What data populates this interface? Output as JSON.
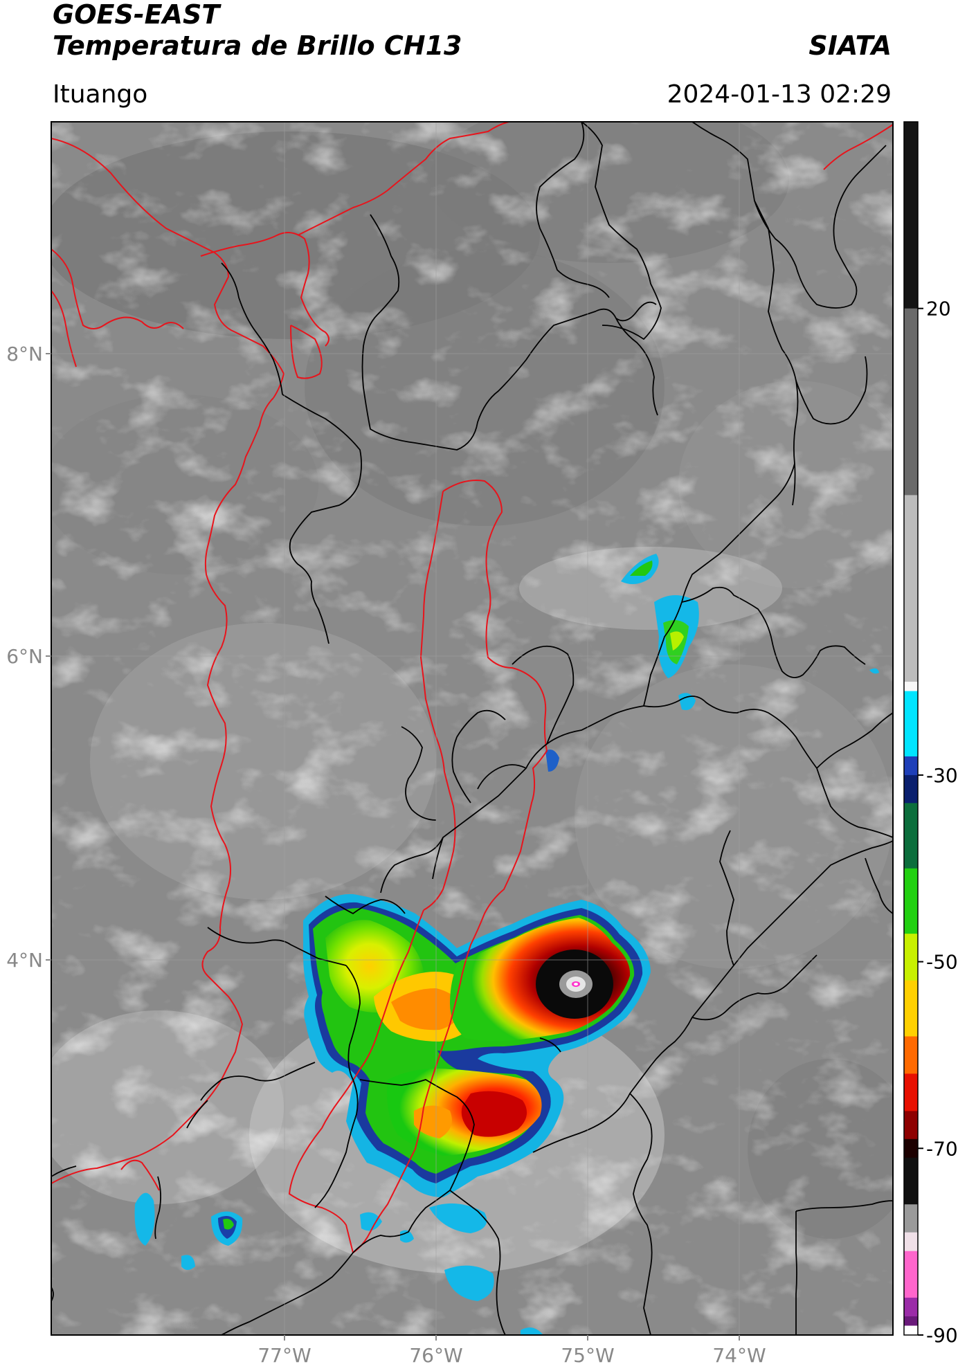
{
  "header": {
    "satellite": "GOES-EAST",
    "product": "Temperatura de Brillo CH13",
    "organization": "SIATA",
    "location": "Ituango",
    "timestamp": "2024-01-13 02:29"
  },
  "map": {
    "lat_labels": [
      "8°N",
      "6°N",
      "4°N"
    ],
    "lon_labels": [
      "77°W",
      "76°W",
      "75°W",
      "74°W"
    ],
    "extent": {
      "lon_min": -78.55,
      "lon_max": -73.0,
      "lat_min": 2.4,
      "lat_max": 10.45
    },
    "colors": {
      "department_borders": "#000000",
      "coastline_basin": "#e8141c",
      "gridlines": "#a0a0a0"
    }
  },
  "colorbar": {
    "ticks": [
      "20",
      "-30",
      "-50",
      "-70",
      "-90"
    ],
    "tick_values": [
      20,
      -30,
      -50,
      -70,
      -90
    ],
    "min": -90,
    "max": 40,
    "stops": [
      {
        "v": 40,
        "c": "#141414"
      },
      {
        "v": 20,
        "c": "#6a6a6a"
      },
      {
        "v": 0,
        "c": "#bcbcbc"
      },
      {
        "v": -20,
        "c": "#f8f8f8"
      },
      {
        "v": -21,
        "c": "#00e5ff"
      },
      {
        "v": -28,
        "c": "#1e3fb8"
      },
      {
        "v": -30,
        "c": "#0a1f6e"
      },
      {
        "v": -33,
        "c": "#0c6e3c"
      },
      {
        "v": -40,
        "c": "#22d011"
      },
      {
        "v": -47,
        "c": "#c8f000"
      },
      {
        "v": -52,
        "c": "#ffd000"
      },
      {
        "v": -58,
        "c": "#ff6a00"
      },
      {
        "v": -62,
        "c": "#e81000"
      },
      {
        "v": -66,
        "c": "#8e0000"
      },
      {
        "v": -69,
        "c": "#1c0000"
      },
      {
        "v": -71,
        "c": "#101010"
      },
      {
        "v": -76,
        "c": "#9a9a9a"
      },
      {
        "v": -79,
        "c": "#f0e0e8"
      },
      {
        "v": -81,
        "c": "#ff66cc"
      },
      {
        "v": -86,
        "c": "#9b2ca8"
      },
      {
        "v": -88,
        "c": "#6a1a7a"
      },
      {
        "v": -89,
        "c": "#ffffff"
      }
    ]
  }
}
